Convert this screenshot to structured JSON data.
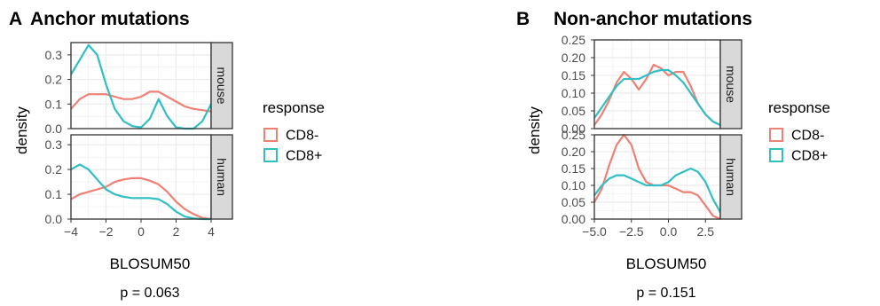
{
  "colors": {
    "CD8-": "#f07f74",
    "CD8+": "#2fbfc4",
    "strip_bg": "#d9d9d9",
    "grid": "#ebebeb"
  },
  "legend": {
    "title": "response",
    "items": [
      "CD8-",
      "CD8+"
    ]
  },
  "chart_data": [
    {
      "type": "line",
      "panel_letter": "A",
      "title": "Anchor mutations",
      "xlabel": "BLOSUM50",
      "ylabel": "density",
      "xlim": [
        -4,
        4
      ],
      "xticks": [
        -4,
        -2,
        0,
        2,
        4
      ],
      "xtick_labels": [
        "−4",
        "−2",
        "0",
        "2",
        "4"
      ],
      "pvalue": "p = 0.063",
      "facets": [
        {
          "label": "mouse",
          "ylim": [
            0,
            0.35
          ],
          "yticks": [
            0,
            0.1,
            0.2,
            0.3
          ],
          "ytick_labels": [
            "0.0",
            "0.1",
            "0.2",
            "0.3"
          ],
          "series": [
            {
              "name": "CD8-",
              "x": [
                -4,
                -3.5,
                -3,
                -2.5,
                -2,
                -1.5,
                -1,
                -0.5,
                0,
                0.5,
                1,
                1.5,
                2,
                2.5,
                3,
                3.5,
                4
              ],
              "values": [
                0.08,
                0.12,
                0.14,
                0.14,
                0.14,
                0.13,
                0.12,
                0.12,
                0.13,
                0.15,
                0.15,
                0.13,
                0.11,
                0.09,
                0.08,
                0.075,
                0.07
              ]
            },
            {
              "name": "CD8+",
              "x": [
                -4,
                -3.5,
                -3,
                -2.5,
                -2,
                -1.5,
                -1,
                -0.5,
                0,
                0.5,
                1,
                1.5,
                2,
                2.5,
                3,
                3.5,
                4
              ],
              "values": [
                0.22,
                0.28,
                0.34,
                0.3,
                0.18,
                0.08,
                0.03,
                0.01,
                0.005,
                0.04,
                0.12,
                0.05,
                0.005,
                0.0,
                0.0,
                0.03,
                0.1
              ]
            }
          ]
        },
        {
          "label": "human",
          "ylim": [
            0,
            0.34
          ],
          "yticks": [
            0,
            0.1,
            0.2,
            0.3
          ],
          "ytick_labels": [
            "0.0",
            "0.1",
            "0.2",
            "0.3"
          ],
          "series": [
            {
              "name": "CD8-",
              "x": [
                -4,
                -3.5,
                -3,
                -2.5,
                -2,
                -1.5,
                -1,
                -0.5,
                0,
                0.5,
                1,
                1.5,
                2,
                2.5,
                3,
                3.5,
                4
              ],
              "values": [
                0.08,
                0.1,
                0.11,
                0.12,
                0.13,
                0.15,
                0.16,
                0.165,
                0.165,
                0.155,
                0.14,
                0.11,
                0.07,
                0.04,
                0.02,
                0.005,
                0.0
              ]
            },
            {
              "name": "CD8+",
              "x": [
                -4,
                -3.5,
                -3,
                -2.5,
                -2,
                -1.5,
                -1,
                -0.5,
                0,
                0.5,
                1,
                1.5,
                2,
                2.5,
                3,
                3.5,
                4
              ],
              "values": [
                0.2,
                0.22,
                0.2,
                0.16,
                0.12,
                0.1,
                0.09,
                0.085,
                0.085,
                0.085,
                0.08,
                0.06,
                0.03,
                0.01,
                0.003,
                0.0,
                0.0
              ]
            }
          ]
        }
      ]
    },
    {
      "type": "line",
      "panel_letter": "B",
      "title": "Non-anchor mutations",
      "xlabel": "BLOSUM50",
      "ylabel": "density",
      "xlim": [
        -5,
        3.5
      ],
      "xticks": [
        -5,
        -2.5,
        0,
        2.5
      ],
      "xtick_labels": [
        "−5.0",
        "−2.5",
        "0.0",
        "2.5"
      ],
      "pvalue": "p = 0.151",
      "facets": [
        {
          "label": "mouse",
          "ylim": [
            0,
            0.25
          ],
          "yticks": [
            0,
            0.05,
            0.1,
            0.15,
            0.2,
            0.25
          ],
          "ytick_labels": [
            "0.00",
            "0.05",
            "0.10",
            "0.15",
            "0.20",
            "0.25"
          ],
          "series": [
            {
              "name": "CD8-",
              "x": [
                -5,
                -4.5,
                -4,
                -3.5,
                -3,
                -2.5,
                -2,
                -1.5,
                -1,
                -0.5,
                0,
                0.5,
                1,
                1.5,
                2,
                2.5,
                3,
                3.5
              ],
              "values": [
                0.01,
                0.04,
                0.08,
                0.13,
                0.16,
                0.14,
                0.11,
                0.14,
                0.18,
                0.17,
                0.15,
                0.16,
                0.16,
                0.12,
                0.07,
                0.04,
                0.02,
                0.01
              ]
            },
            {
              "name": "CD8+",
              "x": [
                -5,
                -4.5,
                -4,
                -3.5,
                -3,
                -2.5,
                -2,
                -1.5,
                -1,
                -0.5,
                0,
                0.5,
                1,
                1.5,
                2,
                2.5,
                3,
                3.5
              ],
              "values": [
                0.03,
                0.06,
                0.09,
                0.12,
                0.14,
                0.14,
                0.14,
                0.15,
                0.16,
                0.165,
                0.165,
                0.15,
                0.13,
                0.1,
                0.07,
                0.04,
                0.02,
                0.01
              ]
            }
          ]
        },
        {
          "label": "human",
          "ylim": [
            0,
            0.25
          ],
          "yticks": [
            0,
            0.05,
            0.1,
            0.15,
            0.2,
            0.25
          ],
          "ytick_labels": [
            "0.00",
            "0.05",
            "0.10",
            "0.15",
            "0.20",
            "0.25"
          ],
          "series": [
            {
              "name": "CD8-",
              "x": [
                -5,
                -4.5,
                -4,
                -3.5,
                -3,
                -2.5,
                -2,
                -1.5,
                -1,
                -0.5,
                0,
                0.5,
                1,
                1.5,
                2,
                2.5,
                3,
                3.5
              ],
              "values": [
                0.05,
                0.09,
                0.16,
                0.22,
                0.25,
                0.22,
                0.15,
                0.11,
                0.1,
                0.1,
                0.1,
                0.09,
                0.08,
                0.08,
                0.07,
                0.04,
                0.01,
                0.0
              ]
            },
            {
              "name": "CD8+",
              "x": [
                -5,
                -4.5,
                -4,
                -3.5,
                -3,
                -2.5,
                -2,
                -1.5,
                -1,
                -0.5,
                0,
                0.5,
                1,
                1.5,
                2,
                2.5,
                3,
                3.5
              ],
              "values": [
                0.07,
                0.1,
                0.12,
                0.13,
                0.13,
                0.12,
                0.11,
                0.1,
                0.1,
                0.1,
                0.11,
                0.13,
                0.14,
                0.15,
                0.14,
                0.11,
                0.06,
                0.02
              ]
            }
          ]
        }
      ]
    }
  ]
}
